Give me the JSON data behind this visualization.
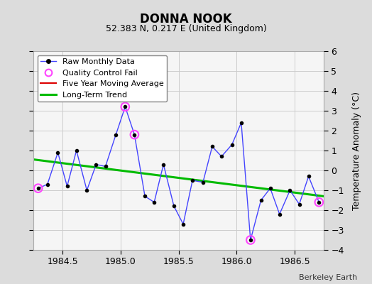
{
  "title": "DONNA NOOK",
  "subtitle": "52.383 N, 0.217 E (United Kingdom)",
  "ylabel": "Temperature Anomaly (°C)",
  "credit": "Berkeley Earth",
  "xlim": [
    1984.25,
    1986.75
  ],
  "ylim": [
    -4,
    6
  ],
  "xticks": [
    1984.5,
    1985.0,
    1985.5,
    1986.0,
    1986.5
  ],
  "yticks": [
    -4,
    -3,
    -2,
    -1,
    0,
    1,
    2,
    3,
    4,
    5,
    6
  ],
  "bg_color": "#dcdcdc",
  "plot_bg_color": "#f5f5f5",
  "raw_x": [
    1984.29,
    1984.37,
    1984.46,
    1984.54,
    1984.62,
    1984.71,
    1984.79,
    1984.87,
    1984.96,
    1985.04,
    1985.12,
    1985.21,
    1985.29,
    1985.37,
    1985.46,
    1985.54,
    1985.62,
    1985.71,
    1985.79,
    1985.87,
    1985.96,
    1986.04,
    1986.12,
    1986.21,
    1986.29,
    1986.37,
    1986.46,
    1986.54,
    1986.62,
    1986.71
  ],
  "raw_y": [
    -0.9,
    -0.7,
    0.9,
    -0.8,
    1.0,
    -1.0,
    0.3,
    0.2,
    1.8,
    3.2,
    1.8,
    -1.3,
    -1.6,
    0.3,
    -1.8,
    -2.7,
    -0.5,
    -0.6,
    1.2,
    0.7,
    1.3,
    2.4,
    -3.5,
    -1.5,
    -0.9,
    -2.2,
    -1.0,
    -1.7,
    -0.3,
    -1.6
  ],
  "qc_fail_x": [
    1984.29,
    1985.04,
    1985.12,
    1986.12,
    1986.71
  ],
  "qc_fail_y": [
    -0.9,
    3.2,
    1.8,
    -3.5,
    -1.6
  ],
  "trend_x": [
    1984.25,
    1986.75
  ],
  "trend_y": [
    0.55,
    -1.3
  ],
  "raw_color": "#4444ff",
  "raw_marker_color": "#000000",
  "qc_color": "#ff44ff",
  "trend_color": "#00bb00",
  "mavg_color": "#dd0000",
  "grid_color": "#cccccc",
  "title_fontsize": 12,
  "subtitle_fontsize": 9,
  "tick_fontsize": 9,
  "ylabel_fontsize": 9
}
